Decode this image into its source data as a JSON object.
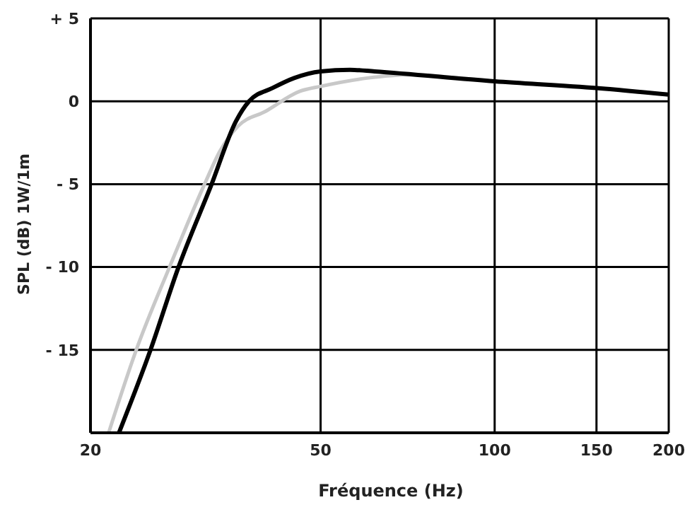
{
  "chart_data": {
    "type": "line",
    "xlabel": "Fréquence (Hz)",
    "ylabel": "SPL (dB) 1W/1m",
    "log": "x",
    "xlim": [
      20,
      200
    ],
    "xticks": [
      20,
      50,
      100,
      150,
      200
    ],
    "ylim": [
      -20,
      5
    ],
    "yticks": [
      {
        "value": 5,
        "label": "+ 5"
      },
      0,
      {
        "value": -5,
        "label": "- 5"
      },
      {
        "value": -10,
        "label": "- 10"
      },
      {
        "value": -15,
        "label": "- 15"
      }
    ],
    "grid": true,
    "marker": "none",
    "line_style": "solid",
    "series": [
      {
        "color": "#c8c8c8",
        "x": [
          21.5,
          24,
          27.4,
          31.5,
          33.5,
          36,
          40.2,
          46,
          50,
          60.2,
          70.9,
          100,
          150,
          200
        ],
        "values": [
          -20,
          -15,
          -10,
          -5,
          -3,
          -1.5,
          -0.6,
          0.6,
          0.9,
          1.4,
          1.6,
          1.2,
          0.8,
          0.4
        ]
      },
      {
        "color": "#000000",
        "x": [
          22.4,
          25.4,
          28.4,
          32.4,
          35.7,
          37.6,
          41.3,
          45,
          50,
          56.2,
          62,
          100,
          150,
          200
        ],
        "values": [
          -20,
          -15,
          -10,
          -5,
          -1.2,
          0,
          0.8,
          1.4,
          1.8,
          1.9,
          1.8,
          1.2,
          0.8,
          0.4
        ]
      }
    ]
  }
}
